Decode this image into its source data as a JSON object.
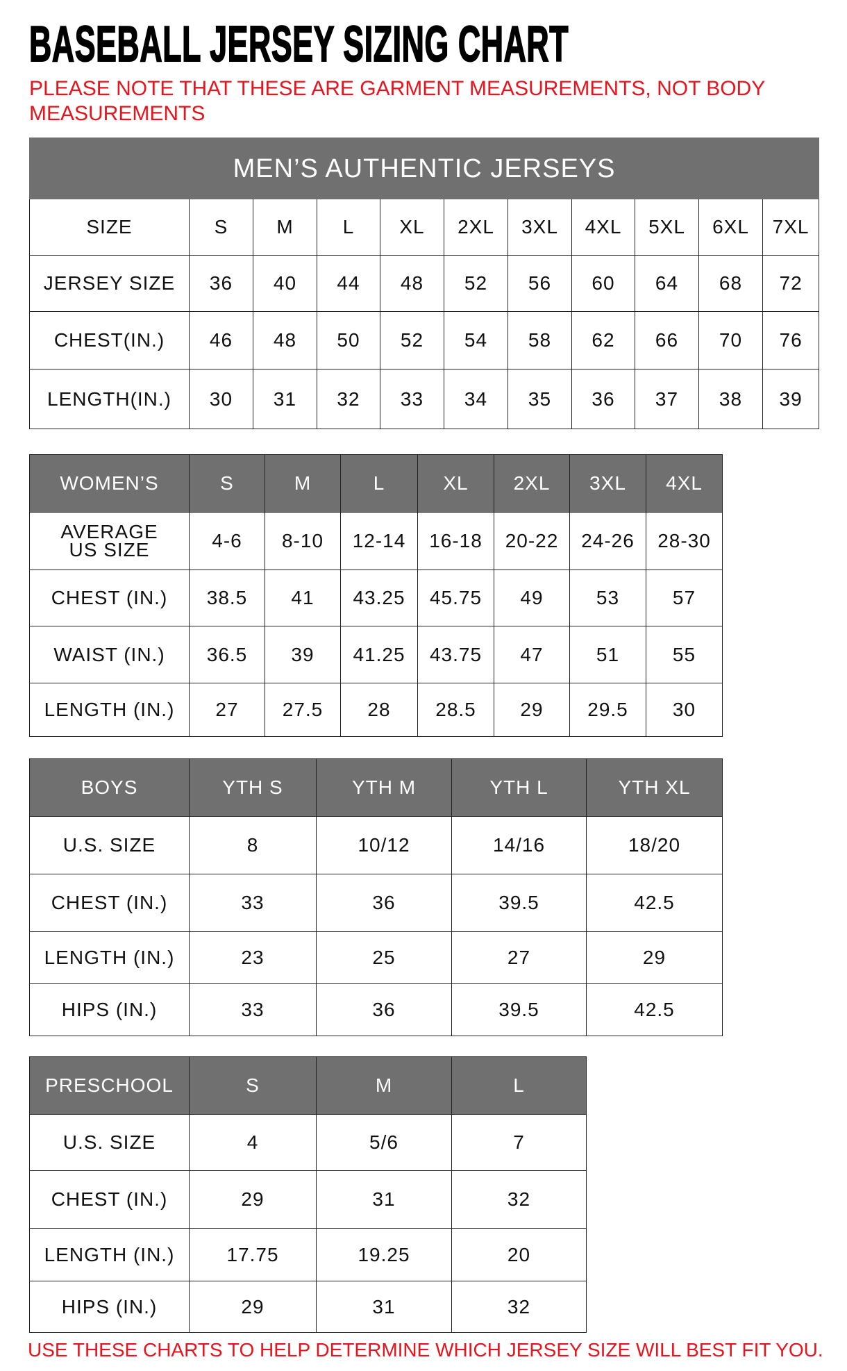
{
  "title": "BASEBALL JERSEY SIZING CHART",
  "note": "PLEASE NOTE THAT THESE ARE GARMENT MEASUREMENTS, NOT BODY MEASUREMENTS",
  "footer": "USE THESE CHARTS TO HELP DETERMINE WHICH JERSEY SIZE WILL BEST FIT YOU.",
  "colors": {
    "header_bg": "#707070",
    "note": "#e8141b"
  },
  "mens": {
    "title": "MEN’S AUTHENTIC JERSEYS",
    "rows": [
      [
        "SIZE",
        "S",
        "M",
        "L",
        "XL",
        "2XL",
        "3XL",
        "4XL",
        "5XL",
        "6XL",
        "7XL"
      ],
      [
        "JERSEY SIZE",
        "36",
        "40",
        "44",
        "48",
        "52",
        "56",
        "60",
        "64",
        "68",
        "72"
      ],
      [
        "CHEST(IN.)",
        "46",
        "48",
        "50",
        "52",
        "54",
        "58",
        "62",
        "66",
        "70",
        "76"
      ],
      [
        "LENGTH(IN.)",
        "30",
        "31",
        "32",
        "33",
        "34",
        "35",
        "36",
        "37",
        "38",
        "39"
      ]
    ]
  },
  "womens": {
    "rows": [
      [
        "WOMEN’S",
        "S",
        "M",
        "L",
        "XL",
        "2XL",
        "3XL",
        "4XL"
      ],
      [
        "AVERAGE US SIZE",
        "4-6",
        "8-10",
        "12-14",
        "16-18",
        "20-22",
        "24-26",
        "28-30"
      ],
      [
        "CHEST (IN.)",
        "38.5",
        "41",
        "43.25",
        "45.75",
        "49",
        "53",
        "57"
      ],
      [
        "WAIST (IN.)",
        "36.5",
        "39",
        "41.25",
        "43.75",
        "47",
        "51",
        "55"
      ],
      [
        "LENGTH (IN.)",
        "27",
        "27.5",
        "28",
        "28.5",
        "29",
        "29.5",
        "30"
      ]
    ]
  },
  "boys": {
    "rows": [
      [
        "BOYS",
        "YTH S",
        "YTH M",
        "YTH L",
        "YTH XL"
      ],
      [
        "U.S. SIZE",
        "8",
        "10/12",
        "14/16",
        "18/20"
      ],
      [
        "CHEST (IN.)",
        "33",
        "36",
        "39.5",
        "42.5"
      ],
      [
        "LENGTH (IN.)",
        "23",
        "25",
        "27",
        "29"
      ],
      [
        "HIPS (IN.)",
        "33",
        "36",
        "39.5",
        "42.5"
      ]
    ]
  },
  "preschool": {
    "rows": [
      [
        "PRESCHOOL",
        "S",
        "M",
        "L"
      ],
      [
        "U.S. SIZE",
        "4",
        "5/6",
        "7"
      ],
      [
        "CHEST (IN.)",
        "29",
        "31",
        "32"
      ],
      [
        "LENGTH (IN.)",
        "17.75",
        "19.25",
        "20"
      ],
      [
        "HIPS (IN.)",
        "29",
        "31",
        "32"
      ]
    ]
  }
}
